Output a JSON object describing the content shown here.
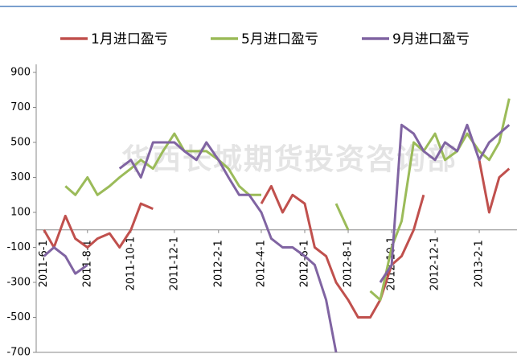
{
  "chart_data": {
    "type": "line",
    "watermark": "华西长城期货投资咨询部",
    "x": [
      "2011-6-1",
      "2011-6-15",
      "2011-7-1",
      "2011-7-15",
      "2011-8-1",
      "2011-8-15",
      "2011-9-1",
      "2011-9-15",
      "2011-10-1",
      "2011-10-15",
      "2011-11-1",
      "2011-11-15",
      "2011-12-1",
      "2011-12-15",
      "2012-1-1",
      "2012-1-15",
      "2012-2-1",
      "2012-2-15",
      "2012-3-1",
      "2012-3-15",
      "2012-4-1",
      "2012-4-15",
      "2012-5-1",
      "2012-5-15",
      "2012-6-1",
      "2012-6-15",
      "2012-7-1",
      "2012-7-15",
      "2012-8-1",
      "2012-8-15",
      "2012-9-1",
      "2012-9-15",
      "2012-10-1",
      "2012-10-15",
      "2012-11-1",
      "2012-11-15",
      "2012-12-1",
      "2012-12-15",
      "2013-1-1",
      "2013-1-15",
      "2013-2-1",
      "2013-2-15",
      "2013-3-1",
      "2013-3-15"
    ],
    "series": [
      {
        "name": "1月进口盈亏",
        "color": "#c0504d",
        "values": [
          0,
          -100,
          80,
          -50,
          -100,
          -50,
          -20,
          -100,
          0,
          150,
          120,
          null,
          null,
          null,
          null,
          null,
          null,
          null,
          null,
          null,
          150,
          250,
          100,
          200,
          150,
          -100,
          -150,
          -300,
          -400,
          -500,
          -500,
          -400,
          -200,
          -150,
          0,
          200,
          null,
          null,
          null,
          null,
          400,
          100,
          300,
          350
        ]
      },
      {
        "name": "5月进口盈亏",
        "color": "#9bbb59",
        "values": [
          null,
          null,
          250,
          200,
          300,
          200,
          250,
          300,
          350,
          400,
          350,
          450,
          550,
          450,
          450,
          450,
          400,
          350,
          250,
          200,
          200,
          null,
          null,
          null,
          null,
          null,
          null,
          150,
          0,
          null,
          -350,
          -400,
          -100,
          50,
          500,
          450,
          550,
          400,
          450,
          550,
          450,
          400,
          500,
          750
        ]
      },
      {
        "name": "9月进口盈亏",
        "color": "#8064a2",
        "values": [
          -150,
          -100,
          -150,
          -250,
          -200,
          null,
          null,
          350,
          400,
          300,
          500,
          500,
          500,
          450,
          400,
          500,
          400,
          300,
          200,
          200,
          100,
          -50,
          -100,
          -100,
          -150,
          -200,
          -400,
          -700,
          null,
          null,
          null,
          -300,
          -200,
          600,
          550,
          450,
          400,
          500,
          450,
          600,
          400,
          500,
          550,
          600
        ]
      }
    ],
    "xlim": [
      "2011-5-21",
      "2013-3-26"
    ],
    "xticks": [
      "2011-6-1",
      "2011-8-1",
      "2011-10-1",
      "2011-12-1",
      "2012-2-1",
      "2012-4-1",
      "2012-6-1",
      "2012-8-1",
      "2012-10-1",
      "2012-12-1",
      "2013-2-1"
    ],
    "ylim": [
      -700,
      900
    ],
    "yticks": [
      900,
      700,
      500,
      300,
      100,
      -100,
      -300,
      -500,
      -700
    ]
  }
}
